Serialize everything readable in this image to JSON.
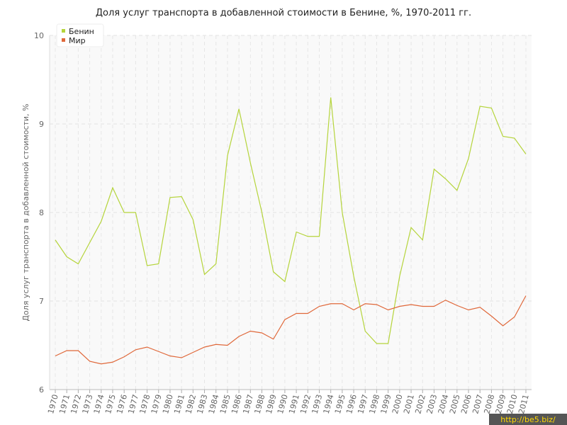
{
  "chart_data": {
    "type": "line",
    "title": "Доля услуг транспорта в добавленной стоимости в Бенине, %, 1970-2011 гг.",
    "y_label": "Доля услуг транспорта в добавленной стоимости, %",
    "watermark": "http://be5.biz/",
    "categories": [
      "1970",
      "1971",
      "1972",
      "1973",
      "1974",
      "1975",
      "1976",
      "1977",
      "1978",
      "1979",
      "1980",
      "1981",
      "1982",
      "1983",
      "1984",
      "1985",
      "1986",
      "1987",
      "1988",
      "1989",
      "1990",
      "1991",
      "1992",
      "1993",
      "1994",
      "1995",
      "1996",
      "1997",
      "1998",
      "1999",
      "2000",
      "2001",
      "2002",
      "2003",
      "2004",
      "2005",
      "2006",
      "2007",
      "2008",
      "2009",
      "2010",
      "2011"
    ],
    "series": [
      {
        "name": "Бенин",
        "color": "#b5d43b",
        "values": [
          7.69,
          7.5,
          7.42,
          7.66,
          7.9,
          8.28,
          8.0,
          8.0,
          7.4,
          7.42,
          8.17,
          8.18,
          7.92,
          7.3,
          7.42,
          8.64,
          9.17,
          8.56,
          8.0,
          7.33,
          7.22,
          7.78,
          7.73,
          7.73,
          9.3,
          8.0,
          7.28,
          6.66,
          6.52,
          6.52,
          7.28,
          7.83,
          7.69,
          8.49,
          8.38,
          8.25,
          8.61,
          9.2,
          9.18,
          8.86,
          8.84,
          8.66
        ]
      },
      {
        "name": "Мир",
        "color": "#e0683a",
        "values": [
          6.38,
          6.44,
          6.44,
          6.32,
          6.29,
          6.31,
          6.37,
          6.45,
          6.48,
          6.43,
          6.38,
          6.36,
          6.42,
          6.48,
          6.51,
          6.5,
          6.6,
          6.66,
          6.64,
          6.57,
          6.79,
          6.86,
          6.86,
          6.94,
          6.97,
          6.97,
          6.9,
          6.97,
          6.96,
          6.9,
          6.94,
          6.96,
          6.94,
          6.94,
          7.01,
          6.95,
          6.9,
          6.93,
          6.83,
          6.72,
          6.82,
          7.06
        ]
      }
    ],
    "ylim": [
      6,
      10
    ],
    "yticks": [
      6,
      7,
      8,
      9,
      10
    ],
    "grid": true,
    "legend": "top-left"
  }
}
